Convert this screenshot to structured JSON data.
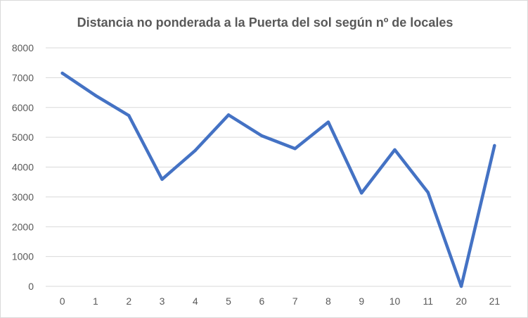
{
  "chart_data": {
    "type": "line",
    "title": "Distancia no ponderada a la Puerta del sol según nº de locales",
    "categories": [
      "0",
      "1",
      "2",
      "3",
      "4",
      "5",
      "6",
      "7",
      "8",
      "9",
      "10",
      "11",
      "20",
      "21"
    ],
    "series": [
      {
        "values": [
          7150,
          6400,
          5730,
          3590,
          4560,
          5750,
          5050,
          4620,
          5510,
          3130,
          4580,
          3150,
          0,
          4720
        ]
      }
    ],
    "ylim": [
      0,
      8000
    ],
    "yticks": [
      0,
      1000,
      2000,
      3000,
      4000,
      5000,
      6000,
      7000,
      8000
    ],
    "grid": true,
    "line_color": "#4472c4",
    "grid_color": "#d9d9d9",
    "text_color": "#595959"
  }
}
